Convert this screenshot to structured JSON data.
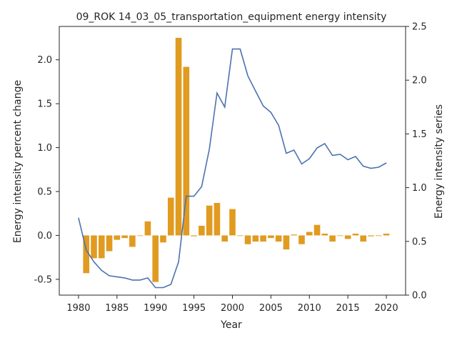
{
  "chart_data": {
    "type": "bar+line",
    "title": "09_ROK 14_03_05_transportation_equipment energy intensity",
    "xlabel": "Year",
    "ylabel_left": "Energy intensity percent change",
    "ylabel_right": "Energy intensity series",
    "xlim": [
      1977.5,
      2022.5
    ],
    "ylim_left": [
      -0.68,
      2.38
    ],
    "ylim_right": [
      0.0,
      2.5
    ],
    "xticks": [
      1980,
      1985,
      1990,
      1995,
      2000,
      2005,
      2010,
      2015,
      2020
    ],
    "yticks_left": [
      -0.5,
      0.0,
      0.5,
      1.0,
      1.5,
      2.0
    ],
    "yticks_right": [
      0.0,
      0.5,
      1.0,
      1.5,
      2.0,
      2.5
    ],
    "bar_color": "#e09b20",
    "line_color": "#4c72b0",
    "grid": false,
    "legend": "none",
    "series": [
      {
        "kind": "bar",
        "axis": "left",
        "x": [
          1981,
          1982,
          1983,
          1984,
          1985,
          1986,
          1987,
          1988,
          1989,
          1990,
          1991,
          1992,
          1993,
          1994,
          1995,
          1996,
          1997,
          1998,
          1999,
          2000,
          2001,
          2002,
          2003,
          2004,
          2005,
          2006,
          2007,
          2008,
          2009,
          2010,
          2011,
          2012,
          2013,
          2014,
          2015,
          2016,
          2017,
          2018,
          2019,
          2020
        ],
        "values": [
          -0.43,
          -0.26,
          -0.26,
          -0.18,
          -0.05,
          -0.03,
          -0.13,
          0.0,
          0.16,
          -0.53,
          -0.08,
          0.43,
          2.25,
          1.92,
          -0.01,
          0.11,
          0.34,
          0.37,
          -0.07,
          0.3,
          0.0,
          -0.1,
          -0.07,
          -0.07,
          -0.03,
          -0.07,
          -0.16,
          0.01,
          -0.1,
          0.04,
          0.12,
          0.02,
          -0.07,
          0.0,
          -0.04,
          0.02,
          -0.07,
          -0.01,
          0.0,
          0.02
        ]
      },
      {
        "kind": "line",
        "axis": "right",
        "x": [
          1980,
          1981,
          1982,
          1983,
          1984,
          1985,
          1986,
          1987,
          1988,
          1989,
          1990,
          1991,
          1992,
          1993,
          1994,
          1995,
          1996,
          1997,
          1998,
          1999,
          2000,
          2001,
          2002,
          2003,
          2004,
          2005,
          2006,
          2007,
          2008,
          2009,
          2010,
          2011,
          2012,
          2013,
          2014,
          2015,
          2016,
          2017,
          2018,
          2019,
          2020
        ],
        "values": [
          0.72,
          0.42,
          0.31,
          0.23,
          0.18,
          0.17,
          0.16,
          0.14,
          0.14,
          0.16,
          0.07,
          0.07,
          0.1,
          0.31,
          0.92,
          0.92,
          1.01,
          1.36,
          1.88,
          1.75,
          2.29,
          2.29,
          2.04,
          1.9,
          1.76,
          1.7,
          1.58,
          1.32,
          1.35,
          1.22,
          1.27,
          1.37,
          1.41,
          1.3,
          1.31,
          1.26,
          1.29,
          1.2,
          1.18,
          1.19,
          1.23
        ]
      }
    ]
  }
}
